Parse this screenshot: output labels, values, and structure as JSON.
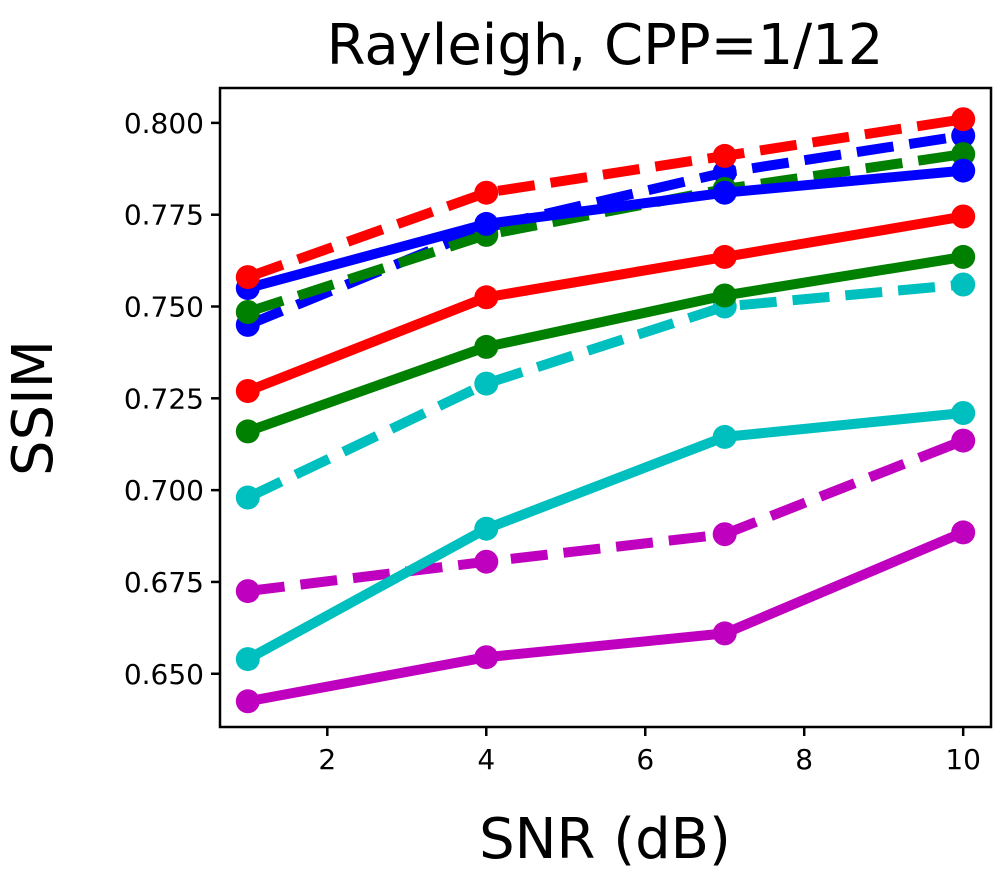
{
  "chart_data": {
    "type": "line",
    "title": "Rayleigh, CPP=1/12",
    "xlabel": "SNR (dB)",
    "ylabel": "SSIM",
    "xlim": [
      0.65,
      10.35
    ],
    "ylim": [
      0.6355,
      0.8095
    ],
    "xticks": [
      2,
      4,
      6,
      8,
      10
    ],
    "xtick_labels": [
      "2",
      "4",
      "6",
      "8",
      "10"
    ],
    "yticks": [
      0.65,
      0.675,
      0.7,
      0.725,
      0.75,
      0.775,
      0.8
    ],
    "ytick_labels": [
      "0.650",
      "0.675",
      "0.700",
      "0.725",
      "0.750",
      "0.775",
      "0.800"
    ],
    "grid": false,
    "x": [
      1,
      4,
      7,
      10
    ],
    "series": [
      {
        "name": "magenta-solid",
        "color": "#bf00bf",
        "style": "solid",
        "values": [
          0.6425,
          0.6545,
          0.661,
          0.6885
        ]
      },
      {
        "name": "magenta-dashed",
        "color": "#bf00bf",
        "style": "dashed",
        "values": [
          0.6725,
          0.6805,
          0.688,
          0.7135
        ]
      },
      {
        "name": "cyan-solid",
        "color": "#00bfbf",
        "style": "solid",
        "values": [
          0.654,
          0.6895,
          0.7145,
          0.721
        ]
      },
      {
        "name": "cyan-dashed",
        "color": "#00bfbf",
        "style": "dashed",
        "values": [
          0.698,
          0.729,
          0.75,
          0.756
        ]
      },
      {
        "name": "green-solid",
        "color": "#008000",
        "style": "solid",
        "values": [
          0.716,
          0.739,
          0.753,
          0.7635
        ]
      },
      {
        "name": "red-solid",
        "color": "#ff0000",
        "style": "solid",
        "values": [
          0.727,
          0.7525,
          0.7635,
          0.7745
        ]
      },
      {
        "name": "blue-dashed",
        "color": "#0000ff",
        "style": "dashed",
        "values": [
          0.745,
          0.7715,
          0.7865,
          0.7965
        ]
      },
      {
        "name": "green-dashed",
        "color": "#008000",
        "style": "dashed",
        "values": [
          0.7485,
          0.7695,
          0.782,
          0.7915
        ]
      },
      {
        "name": "blue-solid",
        "color": "#0000ff",
        "style": "solid",
        "values": [
          0.755,
          0.7725,
          0.781,
          0.787
        ]
      },
      {
        "name": "red-dashed",
        "color": "#ff0000",
        "style": "dashed",
        "values": [
          0.758,
          0.781,
          0.791,
          0.801
        ]
      }
    ]
  }
}
